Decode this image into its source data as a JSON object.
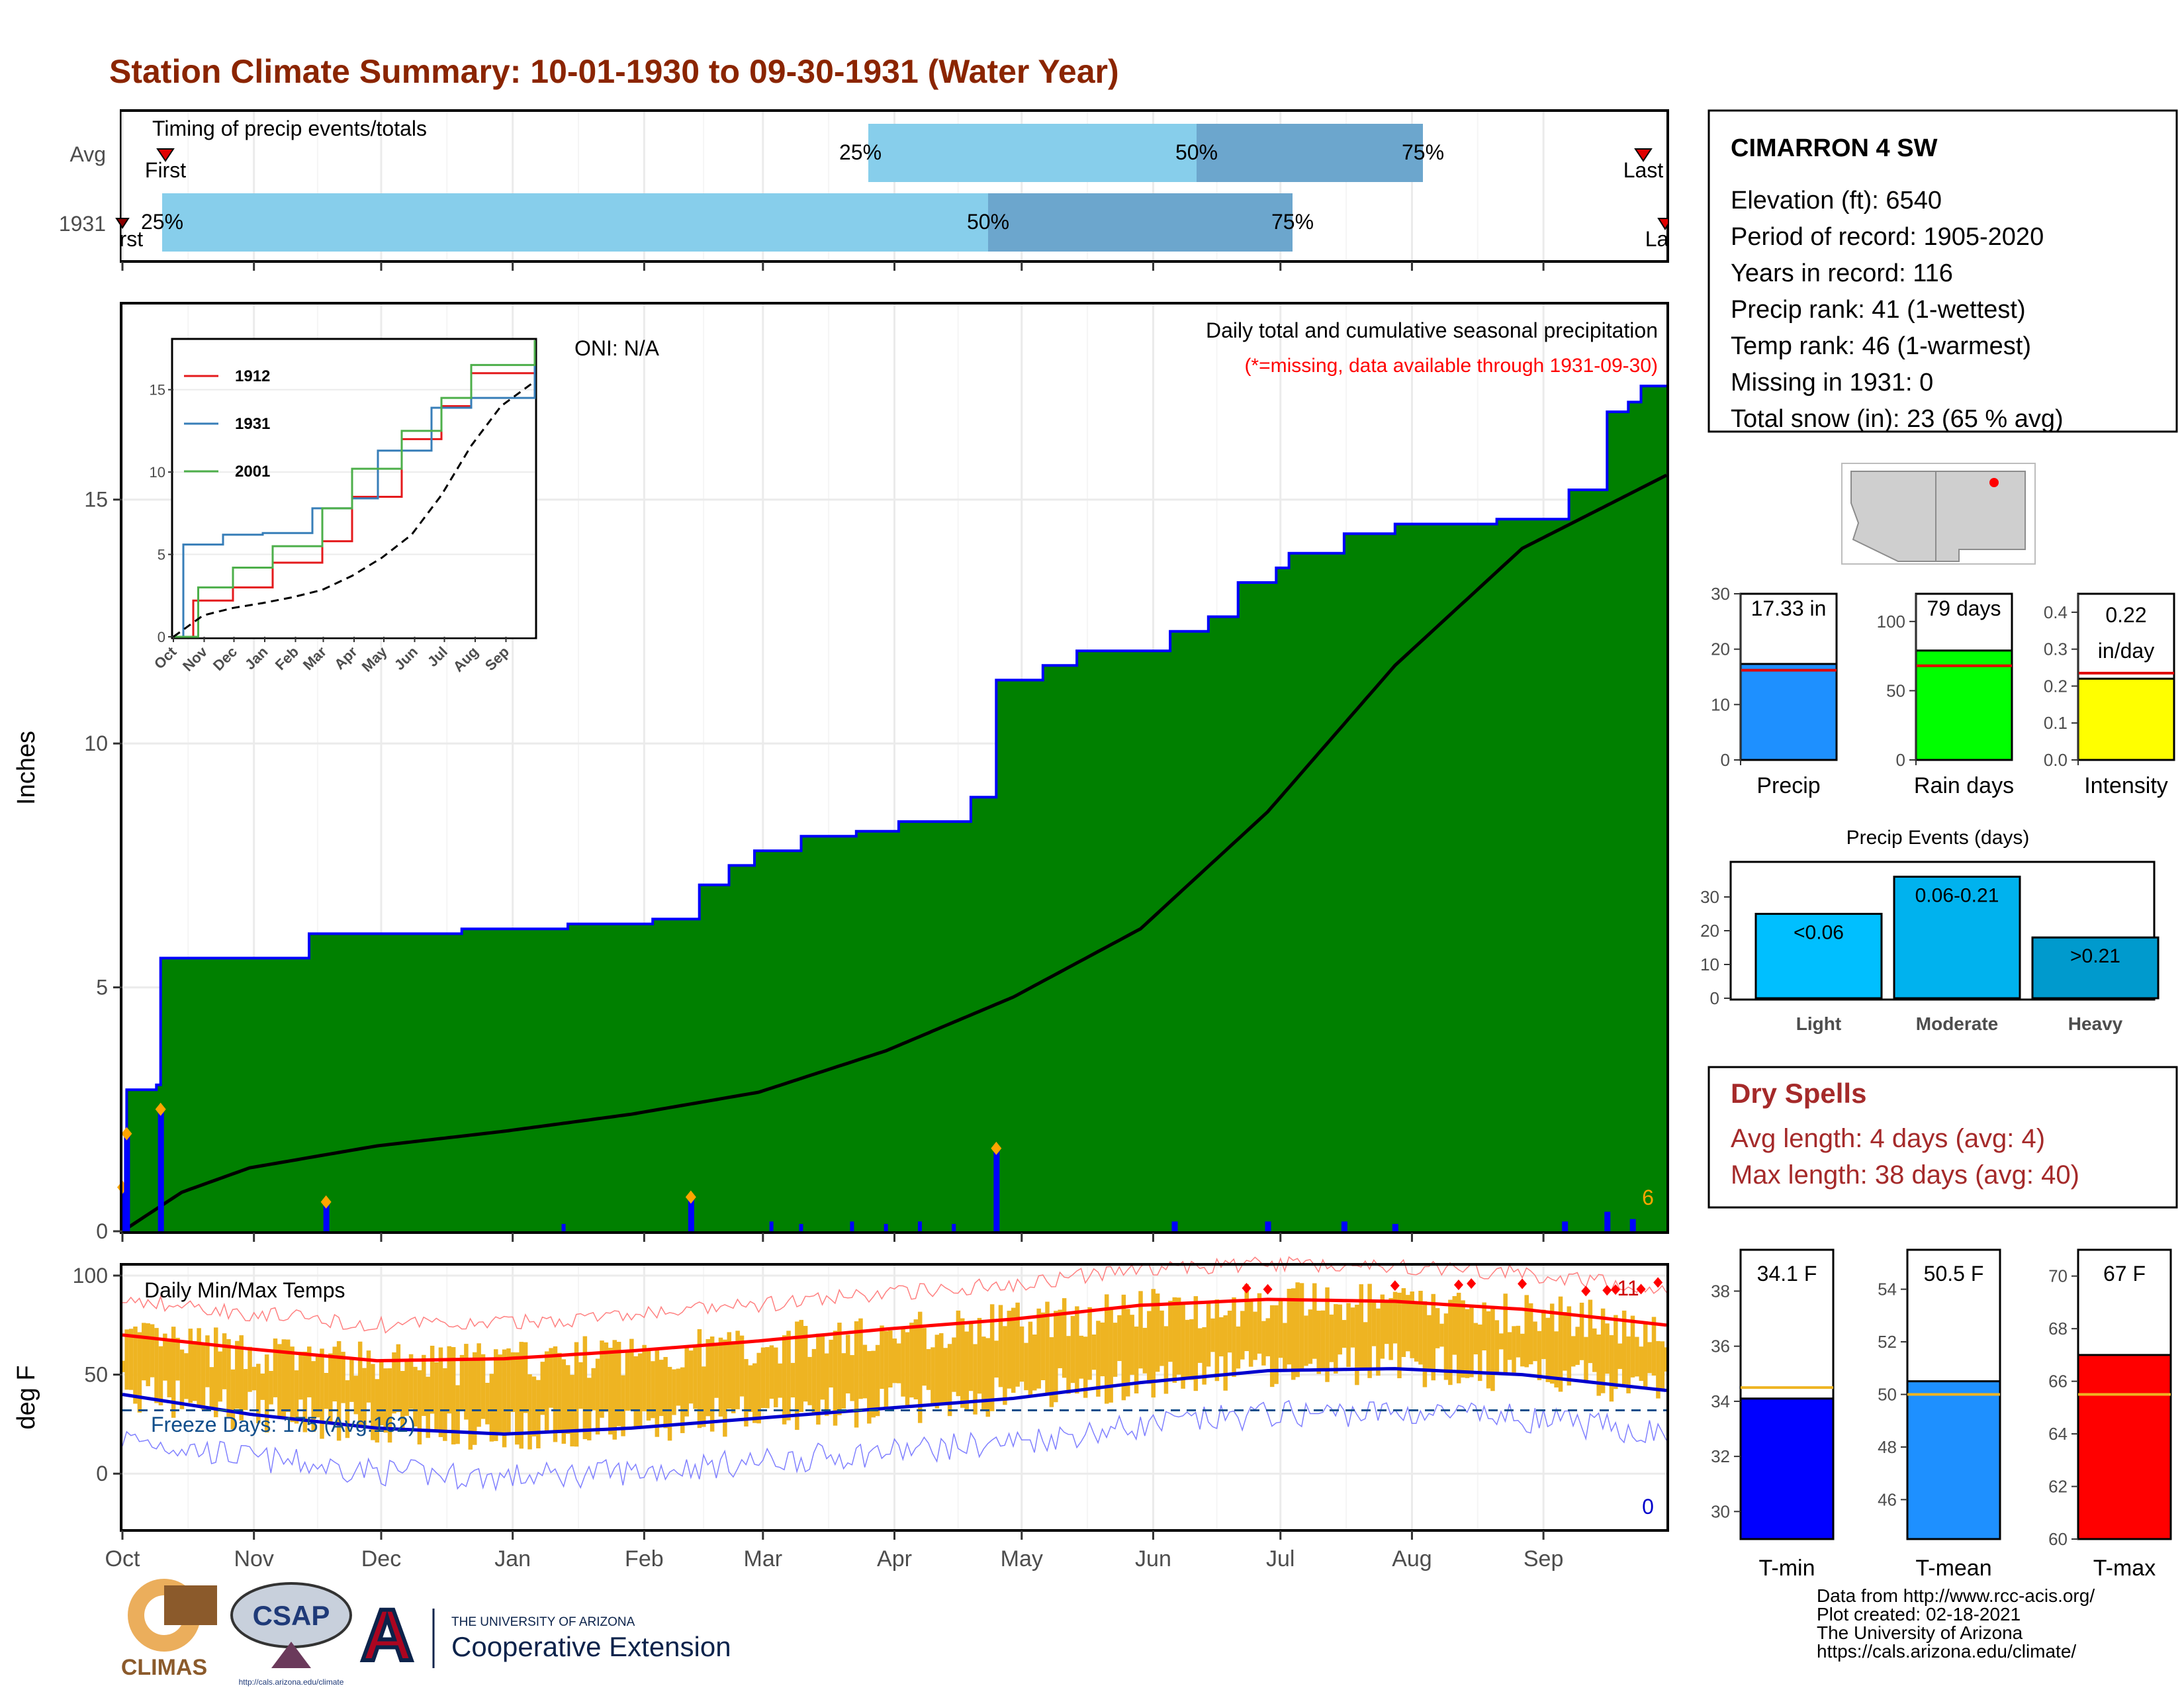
{
  "title": "Station Climate Summary: 10-01-1930 to 09-30-1931 (Water Year)",
  "colors": {
    "title": "#8B2500",
    "precip_green": "#008000",
    "normal_grey": "#DEDEDE",
    "bar_blue": "#0000FF",
    "q1": "#87CEEB",
    "q2": "#6CA6CD",
    "temp_bar": "#EEB422",
    "tmax": "#FF0000",
    "tmin": "#0000CD",
    "dry_spell": "#A52A2A",
    "event_light": "#00BFFF",
    "event_mod": "#00B2EE",
    "event_heavy": "#009ACD"
  },
  "timing": {
    "label": "Timing of precip events/totals",
    "rows": [
      {
        "name": "Avg",
        "first_label": "First",
        "last_label": "Last",
        "p25": "25%",
        "p50": "50%",
        "p75": "75%"
      },
      {
        "name": "1931",
        "first_label": "First",
        "last_label": "Last",
        "p25": "25%",
        "p50": "50%",
        "p75": "75%"
      }
    ]
  },
  "station": {
    "name": "CIMARRON 4 SW",
    "lines": [
      "Elevation (ft): 6540",
      "Period of record: 1905-2020",
      "Years in record: 116",
      "Precip rank: 41 (1-wettest)",
      "Temp rank: 46 (1-warmest)",
      "Missing in 1931: 0",
      "Total snow (in): 23 (65 % avg)"
    ]
  },
  "main_panel": {
    "ylabel": "Inches",
    "oni": "ONI: N/A",
    "caption": "Daily total and cumulative seasonal precipitation",
    "missing_note": "(*=missing, data available through 1931-09-30)",
    "extreme_count": "6",
    "months": [
      "Oct",
      "Nov",
      "Dec",
      "Jan",
      "Feb",
      "Mar",
      "Apr",
      "May",
      "Jun",
      "Jul",
      "Aug",
      "Sep"
    ]
  },
  "inset": {
    "series": [
      "1912",
      "1931",
      "2001"
    ]
  },
  "temp_panel": {
    "label": "Daily Min/Max Temps",
    "ylabel": "deg F",
    "freeze": "Freeze Days: 175 (Avg:162)",
    "hot_count": "11",
    "cold_count": "0"
  },
  "summary_bars": [
    {
      "label": "Precip",
      "value_label": "17.33 in",
      "value": 17.33,
      "avg": 16.2,
      "max": 30
    },
    {
      "label": "Rain days",
      "value_label": "79 days",
      "value": 79,
      "avg": 68,
      "max": 120
    },
    {
      "label": "Intensity",
      "value_label": "0.22 in/day",
      "value": 0.22,
      "avg": 0.235,
      "max": 0.45
    }
  ],
  "events": {
    "title": "Precip Events (days)",
    "bars": [
      {
        "label": "Light",
        "range": "<0.06",
        "value": 25
      },
      {
        "label": "Moderate",
        "range": "0.06-0.21",
        "value": 36
      },
      {
        "label": "Heavy",
        "range": ">0.21",
        "value": 18
      }
    ]
  },
  "dry_spells": {
    "title": "Dry Spells",
    "avg": "Avg length: 4 days (avg: 4)",
    "max": "Max length: 38 days (avg: 40)"
  },
  "temp_bars": [
    {
      "label": "T-min",
      "value_label": "34.1 F",
      "value": 34.1,
      "avg": 34.5
    },
    {
      "label": "T-mean",
      "value_label": "50.5 F",
      "value": 50.5,
      "avg": 50.0
    },
    {
      "label": "T-max",
      "value_label": "67 F",
      "value": 67,
      "avg": 65.5
    }
  ],
  "credits": [
    "Data from http://www.rcc-acis.org/",
    "Plot created: 02-18-2021",
    "The University of Arizona",
    "https://cals.arizona.edu/climate/"
  ],
  "logos": {
    "climas": "CLIMAS",
    "csap": "CSAP",
    "csap_url": "http://cals.arizona.edu/climate",
    "ua_small": "THE UNIVERSITY OF ARIZONA",
    "ua_big": "Cooperative Extension",
    "ua_letter": "A"
  },
  "chart_data": [
    {
      "type": "area",
      "title": "Daily total and cumulative seasonal precipitation",
      "ylabel": "Inches",
      "ylim": [
        0,
        19
      ],
      "x_unit": "day of water year",
      "cumulative_steps": [
        [
          0,
          0
        ],
        [
          1,
          2.9
        ],
        [
          8,
          3.0
        ],
        [
          9,
          5.6
        ],
        [
          44,
          6.1
        ],
        [
          80,
          6.2
        ],
        [
          105,
          6.3
        ],
        [
          125,
          6.4
        ],
        [
          136,
          7.1
        ],
        [
          143,
          7.5
        ],
        [
          149,
          7.8
        ],
        [
          160,
          8.1
        ],
        [
          173,
          8.2
        ],
        [
          183,
          8.4
        ],
        [
          200,
          8.9
        ],
        [
          206,
          11.3
        ],
        [
          217,
          11.6
        ],
        [
          225,
          11.9
        ],
        [
          247,
          12.3
        ],
        [
          256,
          12.6
        ],
        [
          263,
          13.3
        ],
        [
          272,
          13.6
        ],
        [
          275,
          13.9
        ],
        [
          288,
          14.3
        ],
        [
          300,
          14.5
        ],
        [
          324,
          14.6
        ],
        [
          341,
          15.2
        ],
        [
          350,
          16.8
        ],
        [
          355,
          17.0
        ],
        [
          358,
          17.33
        ],
        [
          364,
          17.33
        ]
      ],
      "normal_points": [
        [
          0,
          0
        ],
        [
          14,
          0.8
        ],
        [
          30,
          1.3
        ],
        [
          60,
          1.75
        ],
        [
          90,
          2.05
        ],
        [
          120,
          2.4
        ],
        [
          150,
          2.85
        ],
        [
          180,
          3.7
        ],
        [
          210,
          4.8
        ],
        [
          240,
          6.2
        ],
        [
          270,
          8.6
        ],
        [
          300,
          11.6
        ],
        [
          330,
          14.0
        ],
        [
          364,
          15.5
        ]
      ],
      "daily_bars": [
        [
          0,
          0.9
        ],
        [
          1,
          2.0
        ],
        [
          9,
          2.5
        ],
        [
          48,
          0.6
        ],
        [
          134,
          0.7
        ],
        [
          206,
          1.7
        ],
        [
          248,
          0.2
        ],
        [
          270,
          0.2
        ],
        [
          288,
          0.2
        ],
        [
          300,
          0.15
        ],
        [
          340,
          0.2
        ],
        [
          350,
          0.4
        ],
        [
          356,
          0.25
        ]
      ]
    },
    {
      "type": "line",
      "title": "Cumulative precipitation comparison",
      "ylim": [
        0,
        18
      ],
      "series": [
        {
          "name": "1912",
          "values": [
            [
              0,
              0
            ],
            [
              20,
              2.2
            ],
            [
              60,
              3.0
            ],
            [
              100,
              4.5
            ],
            [
              150,
              5.8
            ],
            [
              180,
              8.5
            ],
            [
              230,
              12.0
            ],
            [
              270,
              14.0
            ],
            [
              300,
              16.0
            ],
            [
              364,
              18.0
            ]
          ]
        },
        {
          "name": "1931",
          "values": [
            [
              0,
              0
            ],
            [
              10,
              5.6
            ],
            [
              50,
              6.2
            ],
            [
              90,
              6.3
            ],
            [
              140,
              7.8
            ],
            [
              180,
              8.4
            ],
            [
              206,
              11.3
            ],
            [
              260,
              13.9
            ],
            [
              300,
              14.5
            ],
            [
              364,
              17.3
            ]
          ]
        },
        {
          "name": "2001",
          "values": [
            [
              0,
              0
            ],
            [
              25,
              3.0
            ],
            [
              60,
              4.2
            ],
            [
              100,
              5.5
            ],
            [
              150,
              7.8
            ],
            [
              180,
              10.2
            ],
            [
              230,
              12.5
            ],
            [
              270,
              14.5
            ],
            [
              300,
              16.5
            ],
            [
              364,
              18.0
            ]
          ]
        },
        {
          "values": [
            [
              0,
              0
            ],
            [
              30,
              1.3
            ],
            [
              60,
              1.75
            ],
            [
              90,
              2.05
            ],
            [
              120,
              2.4
            ],
            [
              150,
              2.85
            ],
            [
              180,
              3.7
            ],
            [
              210,
              4.8
            ],
            [
              240,
              6.2
            ],
            [
              270,
              8.6
            ],
            [
              300,
              11.6
            ],
            [
              330,
              14.0
            ],
            [
              364,
              15.5
            ]
          ]
        }
      ]
    },
    {
      "type": "bar",
      "title": "Daily Min/Max Temps",
      "ylabel": "deg F",
      "ylim": [
        -28,
        105
      ],
      "tmax_avg": [
        [
          0,
          70
        ],
        [
          30,
          63
        ],
        [
          60,
          57
        ],
        [
          90,
          58
        ],
        [
          120,
          62
        ],
        [
          150,
          67
        ],
        [
          180,
          73
        ],
        [
          210,
          78
        ],
        [
          240,
          85
        ],
        [
          270,
          88
        ],
        [
          300,
          87
        ],
        [
          330,
          83
        ],
        [
          364,
          75
        ]
      ],
      "tmin_avg": [
        [
          0,
          40
        ],
        [
          30,
          30
        ],
        [
          60,
          23
        ],
        [
          90,
          20
        ],
        [
          120,
          23
        ],
        [
          150,
          28
        ],
        [
          180,
          33
        ],
        [
          210,
          38
        ],
        [
          240,
          46
        ],
        [
          270,
          52
        ],
        [
          300,
          53
        ],
        [
          330,
          50
        ],
        [
          364,
          42
        ]
      ],
      "freeze_line": 32
    }
  ]
}
